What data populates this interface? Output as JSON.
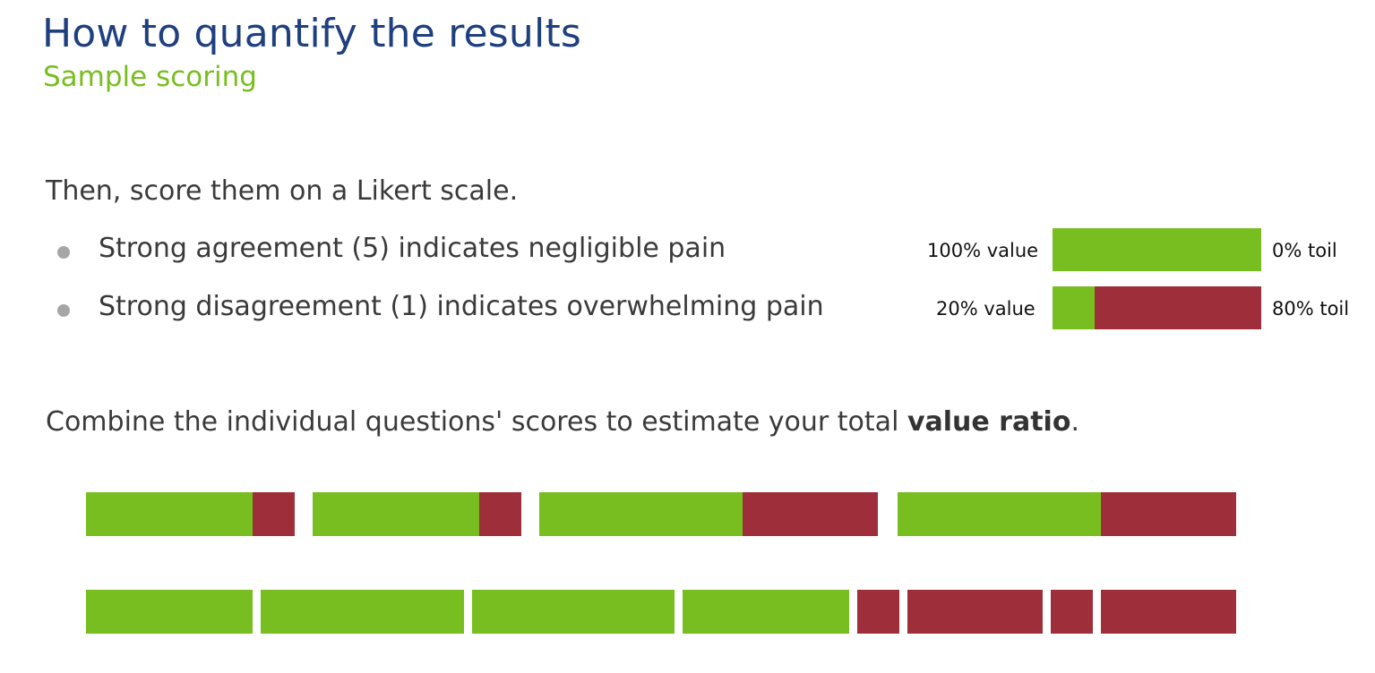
{
  "header": {
    "title": "How to quantify the results",
    "subtitle": "Sample scoring"
  },
  "likert": {
    "intro": "Then, score them on a Likert scale.",
    "items": [
      {
        "text": "Strong agreement (5) indicates negligible pain",
        "value_label": "100% value",
        "toil_label": "0% toil",
        "value_pct": 100,
        "toil_pct": 0
      },
      {
        "text": "Strong disagreement (1) indicates overwhelming pain",
        "value_label": "20% value",
        "toil_label": "80% toil",
        "value_pct": 20,
        "toil_pct": 80
      }
    ]
  },
  "combine": {
    "text_before": "Combine the individual questions' scores to estimate your total ",
    "emphasis": "value ratio",
    "text_after": "."
  },
  "colors": {
    "value": "#78be20",
    "toil": "#9e2f3a",
    "title": "#1f3f7f",
    "subtitle": "#78be20"
  }
}
